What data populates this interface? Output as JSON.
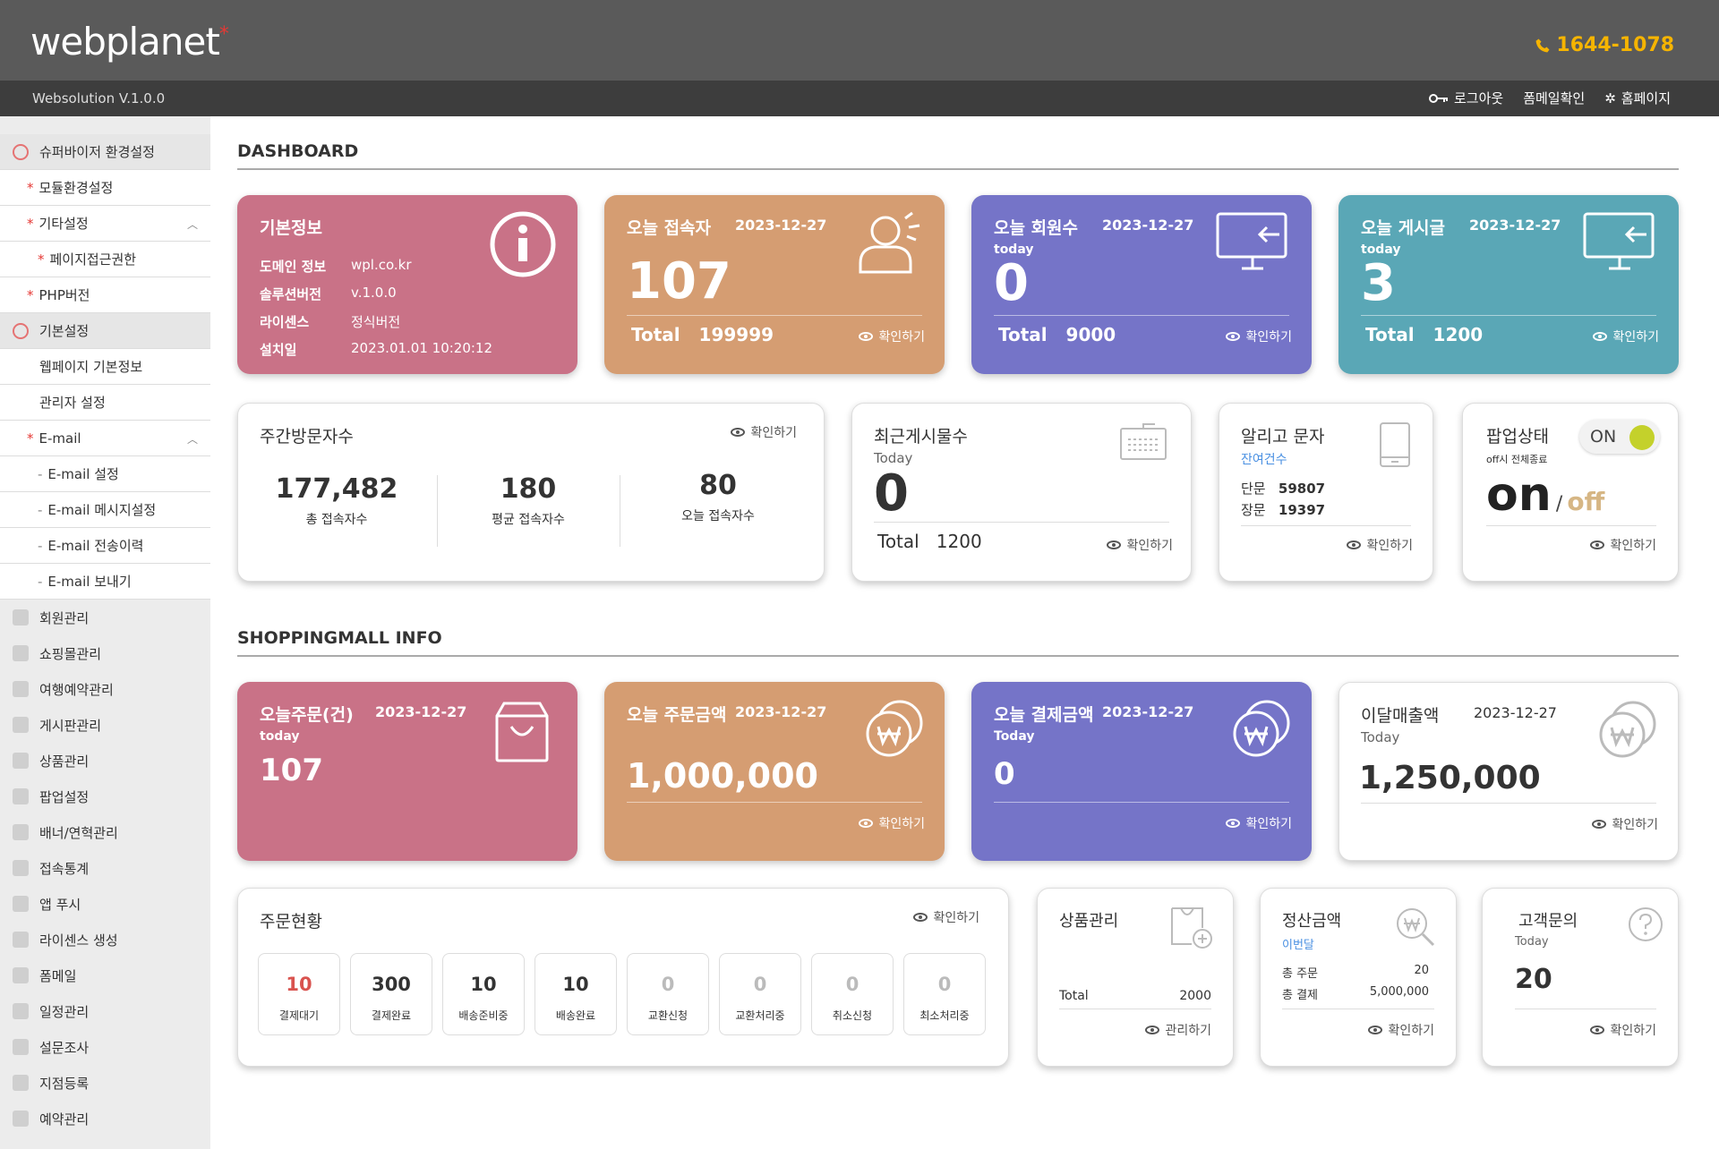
{
  "header": {
    "logo": "webplanet",
    "logo_star": "*",
    "phone": "1644-1078",
    "version": "Websolution V.1.0.0",
    "links": {
      "logout": "로그아웃",
      "formmail": "폼메일확인",
      "homepage": "홈페이지"
    }
  },
  "sidebar": {
    "supervisor": "슈퍼바이저 환경설정",
    "module": "모듈환경설정",
    "etc": "기타설정",
    "page_access": "페이지접근권한",
    "php": "PHP버전",
    "basic": "기본설정",
    "web_info": "웹페이지 기본정보",
    "admin": "관리자 설정",
    "email": "E-mail",
    "email_set": "E-mail 설정",
    "email_msg": "E-mail 메시지설정",
    "email_hist": "E-mail 전송이력",
    "email_send": "E-mail 보내기",
    "menu": [
      "회원관리",
      "쇼핑몰관리",
      "여행예약관리",
      "게시판관리",
      "상품관리",
      "팝업설정",
      "배너/연혁관리",
      "접속통계",
      "앱 푸시",
      "라이센스 생성",
      "폼메일",
      "일정관리",
      "설문조사",
      "지점등록",
      "예약관리"
    ]
  },
  "dashboard": {
    "title": "DASHBOARD",
    "basic": {
      "title": "기본정보",
      "domain_k": "도메인 정보",
      "domain_v": "wpl.co.kr",
      "sol_k": "솔루션버전",
      "sol_v": "v.1.0.0",
      "lic_k": "라이센스",
      "lic_v": "정식버전",
      "inst_k": "설치일",
      "inst_v": "2023.01.01 10:20:12"
    },
    "visitors": {
      "title": "오늘 접속자",
      "date": "2023-12-27",
      "value": "107",
      "total_label": "Total",
      "total": "199999",
      "confirm": "확인하기"
    },
    "members": {
      "title": "오늘 회원수",
      "date": "2023-12-27",
      "today": "today",
      "value": "0",
      "total_label": "Total",
      "total": "9000",
      "confirm": "확인하기"
    },
    "posts": {
      "title": "오늘 게시글",
      "date": "2023-12-27",
      "today": "today",
      "value": "3",
      "total_label": "Total",
      "total": "1200",
      "confirm": "확인하기"
    },
    "weekly": {
      "title": "주간방문자수",
      "confirm": "확인하기",
      "total_v": "177,482",
      "total_l": "총 접속자수",
      "avg_v": "180",
      "avg_l": "평균 접속자수",
      "today_v": "80",
      "today_l": "오늘 접속자수"
    },
    "recent": {
      "title": "최근게시물수",
      "today": "Today",
      "value": "0",
      "total_label": "Total",
      "total": "1200",
      "confirm": "확인하기"
    },
    "sms": {
      "title": "알리고 문자",
      "remain": "잔여건수",
      "short_k": "단문",
      "short_v": "59807",
      "long_k": "장문",
      "long_v": "19397",
      "confirm": "확인하기"
    },
    "popup": {
      "title": "팝업상태",
      "sub": "off시 전체종료",
      "toggle": "ON",
      "on": "on",
      "sep": "/",
      "off": "off",
      "confirm": "확인하기"
    }
  },
  "shop": {
    "title": "SHOPPINGMALL INFO",
    "orders": {
      "title": "오늘주문(건)",
      "date": "2023-12-27",
      "today": "today",
      "value": "107"
    },
    "order_amt": {
      "title": "오늘 주문금액",
      "date": "2023-12-27",
      "value": "1,000,000",
      "confirm": "확인하기"
    },
    "pay_amt": {
      "title": "오늘 결제금액",
      "date": "2023-12-27",
      "today": "Today",
      "value": "0",
      "confirm": "확인하기"
    },
    "month": {
      "title": "이달매출액",
      "date": "2023-12-27",
      "today": "Today",
      "value": "1,250,000",
      "confirm": "확인하기"
    },
    "status": {
      "title": "주문현황",
      "confirm": "확인하기",
      "items": [
        {
          "v": "10",
          "l": "결제대기"
        },
        {
          "v": "300",
          "l": "결제완료"
        },
        {
          "v": "10",
          "l": "배송준비중"
        },
        {
          "v": "10",
          "l": "배송완료"
        },
        {
          "v": "0",
          "l": "교환신청"
        },
        {
          "v": "0",
          "l": "교환처리중"
        },
        {
          "v": "0",
          "l": "취소신청"
        },
        {
          "v": "0",
          "l": "최소처리중"
        }
      ]
    },
    "product": {
      "title": "상품관리",
      "total_label": "Total",
      "total": "2000",
      "confirm": "관리하기"
    },
    "settle": {
      "title": "정산금액",
      "period": "이번달",
      "order_k": "총 주문",
      "order_v": "20",
      "pay_k": "총 결제",
      "pay_v": "5,000,000",
      "confirm": "확인하기"
    },
    "inquiry": {
      "title": "고객문의",
      "today": "Today",
      "value": "20",
      "confirm": "확인하기"
    }
  },
  "colors": {
    "pink": "#c97287",
    "orange": "#d59d72",
    "purple": "#7574c8",
    "teal": "#5aa7b6",
    "phone": "#f6b400"
  }
}
